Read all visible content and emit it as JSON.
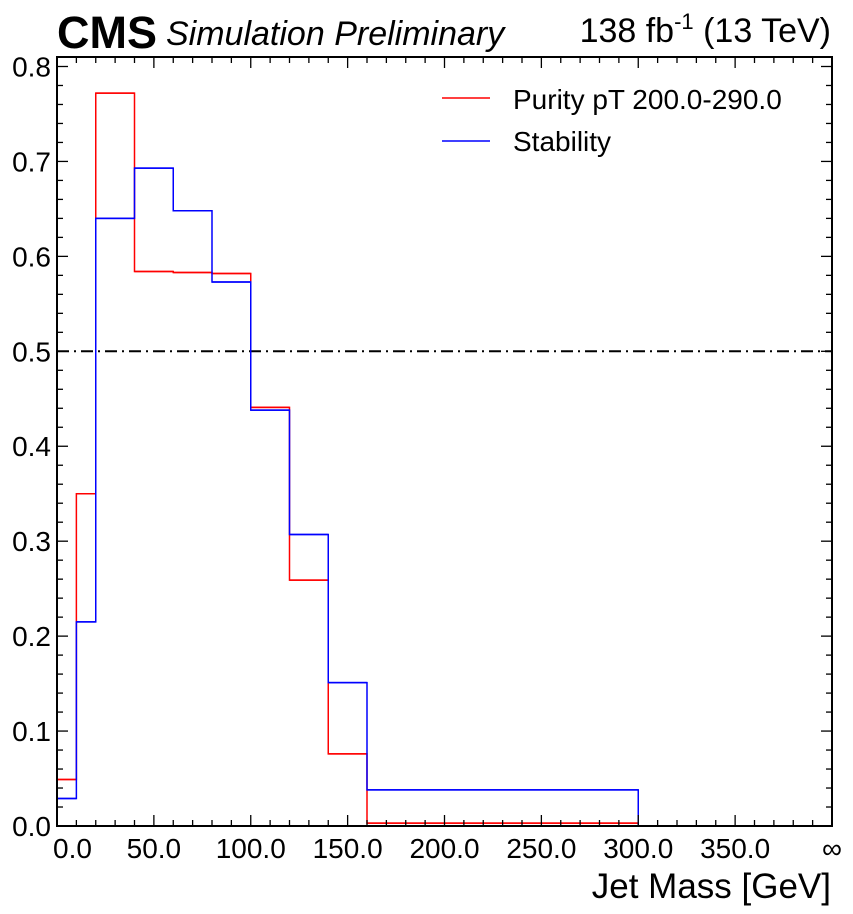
{
  "header": {
    "experiment": "CMS",
    "status": "Simulation Preliminary",
    "lumi_value": "138 fb",
    "lumi_exp": "-1",
    "energy": "(13 TeV)"
  },
  "colors": {
    "purity": "#ff0000",
    "stability": "#0000ff",
    "reference": "#000000"
  },
  "chart_data": {
    "type": "step",
    "title": "",
    "xlabel": "Jet Mass [GeV]",
    "ylabel": "",
    "xlim": [
      0,
      400
    ],
    "ylim": [
      0,
      0.81
    ],
    "grid": false,
    "legend_position": "top-right",
    "x_ticks": [
      "0.0",
      "50.0",
      "100.0",
      "150.0",
      "200.0",
      "250.0",
      "300.0",
      "350.0",
      "∞"
    ],
    "y_ticks": [
      "0.0",
      "0.1",
      "0.2",
      "0.3",
      "0.4",
      "0.5",
      "0.6",
      "0.7",
      "0.8"
    ],
    "bin_edges": [
      0,
      10,
      20,
      40,
      60,
      80,
      100,
      120,
      140,
      160,
      300
    ],
    "series": [
      {
        "name": "Purity pT 200.0-290.0",
        "color": "#ff0000",
        "values": [
          0.049,
          0.35,
          0.772,
          0.584,
          0.583,
          0.582,
          0.441,
          0.259,
          0.076,
          0.003
        ]
      },
      {
        "name": "Stability",
        "color": "#0000ff",
        "values": [
          0.029,
          0.215,
          0.64,
          0.693,
          0.648,
          0.573,
          0.438,
          0.307,
          0.151,
          0.038
        ]
      }
    ],
    "reference_line": {
      "y": 0.5,
      "style": "dash-dot"
    }
  }
}
